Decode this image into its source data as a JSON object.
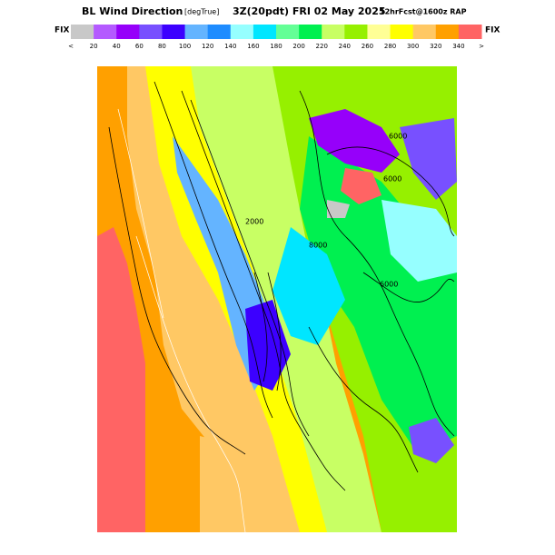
{
  "header": {
    "title": "BL Wind Direction",
    "units": "[degTrue]",
    "valid_time": "3Z(20pdt) FRI 02 May 2025",
    "forecast": "12hrFcst@1600z RAP"
  },
  "legend": {
    "left_label": "FIX",
    "right_label": "FIX",
    "colors": [
      "#c8c8c8",
      "#b45aff",
      "#9600fa",
      "#7850ff",
      "#3c00ff",
      "#64b4ff",
      "#1e8cff",
      "#96ffff",
      "#00e6ff",
      "#64ff96",
      "#00f050",
      "#c8ff64",
      "#96f000",
      "#ffff96",
      "#ffff00",
      "#ffc864",
      "#ffa000",
      "#ff6464"
    ],
    "labels": [
      "<",
      "20",
      "40",
      "60",
      "80",
      "100",
      "120",
      "140",
      "160",
      "180",
      "200",
      "220",
      "240",
      "260",
      "280",
      "300",
      "320",
      "340",
      ">"
    ]
  },
  "contour_labels": [
    "6000",
    "6000",
    "6000",
    "2000",
    "8000"
  ]
}
